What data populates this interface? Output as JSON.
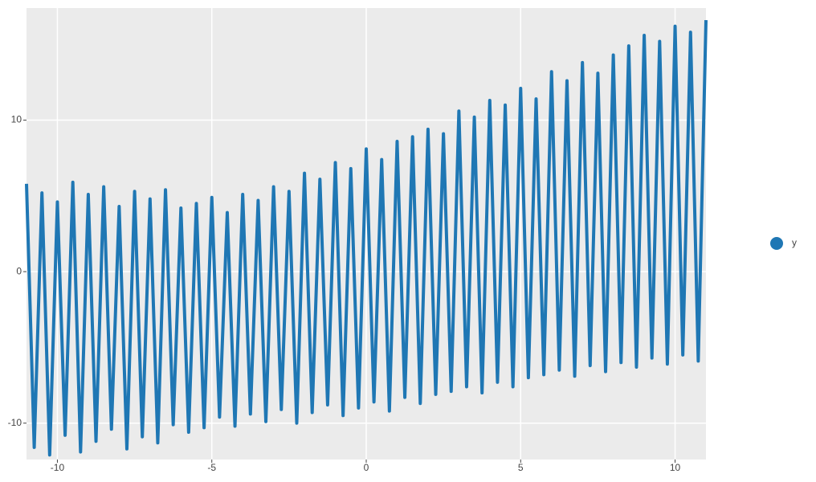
{
  "chart_data": {
    "type": "line",
    "x": [
      -11,
      -10.75,
      -10.5,
      -10.25,
      -10,
      -9.75,
      -9.5,
      -9.25,
      -9,
      -8.75,
      -8.5,
      -8.25,
      -8,
      -7.75,
      -7.5,
      -7.25,
      -7,
      -6.75,
      -6.5,
      -6.25,
      -6,
      -5.75,
      -5.5,
      -5.25,
      -5,
      -4.75,
      -4.5,
      -4.25,
      -4,
      -3.75,
      -3.5,
      -3.25,
      -3,
      -2.75,
      -2.5,
      -2.25,
      -2,
      -1.75,
      -1.5,
      -1.25,
      -1,
      -0.75,
      -0.5,
      -0.25,
      0,
      0.25,
      0.5,
      0.75,
      1,
      1.25,
      1.5,
      1.75,
      2,
      2.25,
      2.5,
      2.75,
      3,
      3.25,
      3.5,
      3.75,
      4,
      4.25,
      4.5,
      4.75,
      5,
      5.25,
      5.5,
      5.75,
      6,
      6.25,
      6.5,
      6.75,
      7,
      7.25,
      7.5,
      7.75,
      8,
      8.25,
      8.5,
      8.75,
      9,
      9.25,
      9.5,
      9.75,
      10,
      10.25,
      10.5,
      10.75,
      11
    ],
    "series": [
      {
        "name": "y",
        "color": "#1f77b4",
        "values": [
          5.8,
          -11.6,
          5.2,
          -12.1,
          4.6,
          -10.8,
          5.9,
          -11.9,
          5.1,
          -11.2,
          5.6,
          -10.4,
          4.3,
          -11.7,
          5.3,
          -10.9,
          4.8,
          -11.3,
          5.4,
          -10.1,
          4.2,
          -10.6,
          4.5,
          -10.3,
          4.9,
          -9.6,
          3.9,
          -10.2,
          5.1,
          -9.4,
          4.7,
          -9.9,
          5.6,
          -9.1,
          5.3,
          -10.0,
          6.5,
          -9.3,
          6.1,
          -8.8,
          7.2,
          -9.5,
          6.8,
          -9.0,
          8.1,
          -8.6,
          7.4,
          -9.2,
          8.6,
          -8.3,
          8.9,
          -8.7,
          9.4,
          -8.1,
          9.1,
          -7.9,
          10.6,
          -7.6,
          10.2,
          -8.0,
          11.3,
          -7.3,
          11.0,
          -7.6,
          12.1,
          -7.0,
          11.4,
          -6.8,
          13.2,
          -6.5,
          12.6,
          -6.9,
          13.8,
          -6.2,
          13.1,
          -6.6,
          14.3,
          -6.0,
          14.9,
          -6.3,
          15.6,
          -5.7,
          15.2,
          -6.1,
          16.2,
          -5.5,
          15.8,
          -5.9,
          16.6
        ]
      }
    ],
    "xlim": [
      -11,
      11
    ],
    "ylim": [
      -12.4,
      17.4
    ],
    "xticks": [
      -10,
      -5,
      0,
      5,
      10
    ],
    "yticks": [
      -10,
      0,
      10
    ],
    "grid": true
  }
}
